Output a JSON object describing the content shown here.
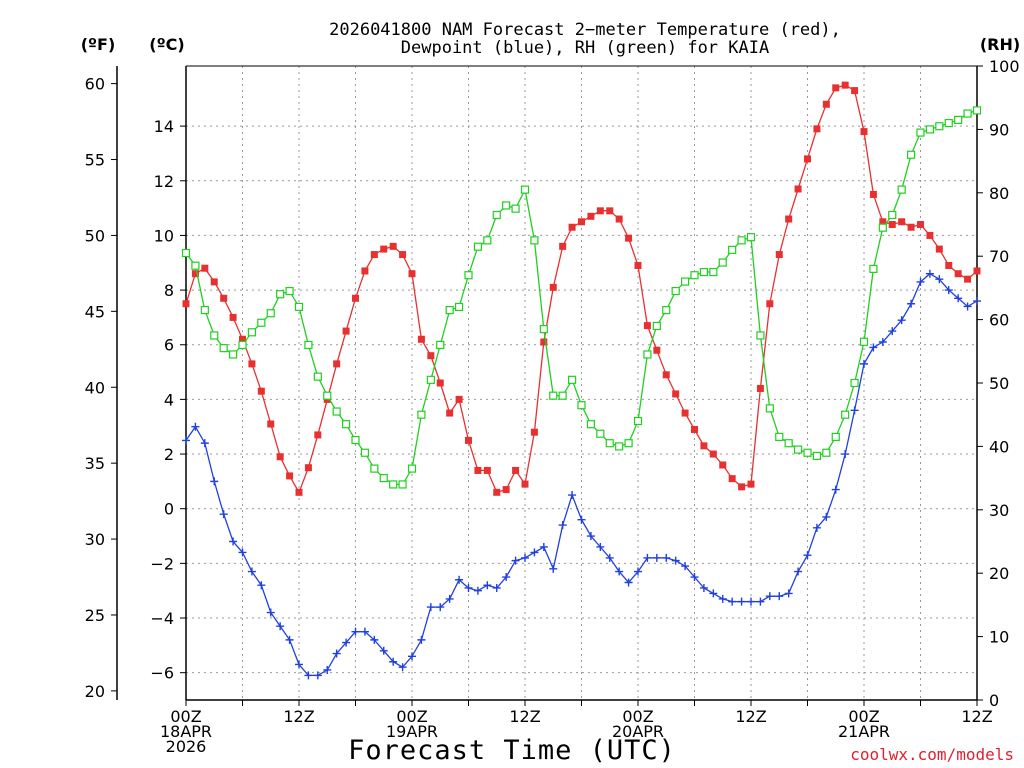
{
  "chart_data": {
    "type": "line",
    "title_line1": "2026041800 NAM Forecast 2−meter Temperature (red),",
    "title_line2": "Dewpoint (blue), RH (green) for KAIA",
    "xlabel": "Forecast Time (UTC)",
    "credit": "coolwx.com/models",
    "units": {
      "fahrenheit": "(ºF)",
      "celsius": "(ºC)",
      "rh": "(RH)"
    },
    "x_range_hours": [
      0,
      84
    ],
    "x_ticks": [
      {
        "hour": 0,
        "lines": [
          "00Z",
          "18APR",
          "2026"
        ]
      },
      {
        "hour": 12,
        "lines": [
          "12Z"
        ]
      },
      {
        "hour": 24,
        "lines": [
          "00Z",
          "19APR"
        ]
      },
      {
        "hour": 36,
        "lines": [
          "12Z"
        ]
      },
      {
        "hour": 48,
        "lines": [
          "00Z",
          "20APR"
        ]
      },
      {
        "hour": 60,
        "lines": [
          "12Z"
        ]
      },
      {
        "hour": 72,
        "lines": [
          "00Z",
          "21APR"
        ]
      },
      {
        "hour": 84,
        "lines": [
          "12Z"
        ]
      }
    ],
    "celsius_axis": {
      "range": [
        -7.0,
        16.2
      ],
      "ticks": [
        "−6",
        "−4",
        "−2",
        "0",
        "2",
        "4",
        "6",
        "8",
        "10",
        "12",
        "14"
      ],
      "tick_values": [
        -6,
        -4,
        -2,
        0,
        2,
        4,
        6,
        8,
        10,
        12,
        14
      ]
    },
    "fahrenheit_axis": {
      "ticks": [
        "20",
        "25",
        "30",
        "35",
        "40",
        "45",
        "50",
        "55",
        "60"
      ],
      "tick_values": [
        20,
        25,
        30,
        35,
        40,
        45,
        50,
        55,
        60
      ]
    },
    "rh_axis": {
      "range": [
        0,
        100
      ],
      "ticks": [
        "0",
        "10",
        "20",
        "30",
        "40",
        "50",
        "60",
        "70",
        "80",
        "90",
        "100"
      ],
      "tick_values": [
        0,
        10,
        20,
        30,
        40,
        50,
        60,
        70,
        80,
        90,
        100
      ]
    },
    "series": [
      {
        "name": "Temperature",
        "color": "#e83030",
        "marker": "filled-square",
        "axis": "celsius",
        "hours": [
          0,
          1,
          2,
          3,
          4,
          5,
          6,
          7,
          8,
          9,
          10,
          11,
          12,
          13,
          14,
          15,
          16,
          17,
          18,
          19,
          20,
          21,
          22,
          23,
          24,
          25,
          26,
          27,
          28,
          29,
          30,
          31,
          32,
          33,
          34,
          35,
          36,
          37,
          38,
          39,
          40,
          41,
          42,
          43,
          44,
          45,
          46,
          47,
          48,
          49,
          50,
          51,
          52,
          53,
          54,
          55,
          56,
          57,
          58,
          59,
          60,
          61,
          62,
          63,
          64,
          65,
          66,
          67,
          68,
          69,
          70,
          71,
          72,
          73,
          74,
          75,
          76,
          77,
          78,
          79,
          80,
          81,
          82,
          83,
          84
        ],
        "values": [
          7.5,
          8.6,
          8.8,
          8.3,
          7.7,
          7.0,
          6.2,
          5.3,
          4.3,
          3.1,
          1.9,
          1.2,
          0.6,
          1.5,
          2.7,
          4.0,
          5.3,
          6.5,
          7.7,
          8.7,
          9.3,
          9.5,
          9.6,
          9.3,
          8.6,
          6.2,
          5.6,
          4.6,
          3.5,
          4.0,
          2.5,
          1.4,
          1.4,
          0.6,
          0.7,
          1.4,
          0.9,
          2.8,
          6.1,
          8.1,
          9.6,
          10.3,
          10.5,
          10.7,
          10.9,
          10.9,
          10.6,
          9.9,
          8.9,
          6.7,
          5.8,
          4.9,
          4.2,
          3.5,
          2.9,
          2.3,
          2.0,
          1.6,
          1.1,
          0.8,
          0.9,
          4.4,
          7.5,
          9.3,
          10.6,
          11.7,
          12.8,
          13.9,
          14.8,
          15.4,
          15.5,
          15.3,
          13.8,
          11.5,
          10.5,
          10.4,
          10.5,
          10.3,
          10.4,
          10.0,
          9.5,
          8.9,
          8.6,
          8.4,
          8.7
        ]
      },
      {
        "name": "Dewpoint",
        "color": "#2040e0",
        "marker": "plus",
        "axis": "celsius",
        "hours": [
          0,
          1,
          2,
          3,
          4,
          5,
          6,
          7,
          8,
          9,
          10,
          11,
          12,
          13,
          14,
          15,
          16,
          17,
          18,
          19,
          20,
          21,
          22,
          23,
          24,
          25,
          26,
          27,
          28,
          29,
          30,
          31,
          32,
          33,
          34,
          35,
          36,
          37,
          38,
          39,
          40,
          41,
          42,
          43,
          44,
          45,
          46,
          47,
          48,
          49,
          50,
          51,
          52,
          53,
          54,
          55,
          56,
          57,
          58,
          59,
          60,
          61,
          62,
          63,
          64,
          65,
          66,
          67,
          68,
          69,
          70,
          71,
          72,
          73,
          74,
          75,
          76,
          77,
          78,
          79,
          80,
          81,
          82,
          83,
          84
        ],
        "values": [
          2.5,
          3.0,
          2.4,
          1.0,
          -0.2,
          -1.2,
          -1.6,
          -2.3,
          -2.8,
          -3.8,
          -4.3,
          -4.8,
          -5.7,
          -6.1,
          -6.1,
          -5.9,
          -5.3,
          -4.9,
          -4.5,
          -4.5,
          -4.8,
          -5.2,
          -5.6,
          -5.8,
          -5.4,
          -4.8,
          -3.6,
          -3.6,
          -3.3,
          -2.6,
          -2.9,
          -3.0,
          -2.8,
          -2.9,
          -2.5,
          -1.9,
          -1.8,
          -1.6,
          -1.4,
          -2.2,
          -0.6,
          0.5,
          -0.4,
          -1.0,
          -1.4,
          -1.8,
          -2.3,
          -2.7,
          -2.3,
          -1.8,
          -1.8,
          -1.8,
          -1.9,
          -2.1,
          -2.5,
          -2.9,
          -3.1,
          -3.3,
          -3.4,
          -3.4,
          -3.4,
          -3.4,
          -3.2,
          -3.2,
          -3.1,
          -2.3,
          -1.7,
          -0.7,
          -0.3,
          0.7,
          2.0,
          3.6,
          5.3,
          5.9,
          6.1,
          6.5,
          6.9,
          7.5,
          8.3,
          8.6,
          8.4,
          8.0,
          7.7,
          7.4,
          7.6
        ]
      },
      {
        "name": "Relative Humidity",
        "color": "#20d020",
        "marker": "open-square",
        "axis": "rh",
        "hours": [
          0,
          1,
          2,
          3,
          4,
          5,
          6,
          7,
          8,
          9,
          10,
          11,
          12,
          13,
          14,
          15,
          16,
          17,
          18,
          19,
          20,
          21,
          22,
          23,
          24,
          25,
          26,
          27,
          28,
          29,
          30,
          31,
          32,
          33,
          34,
          35,
          36,
          37,
          38,
          39,
          40,
          41,
          42,
          43,
          44,
          45,
          46,
          47,
          48,
          49,
          50,
          51,
          52,
          53,
          54,
          55,
          56,
          57,
          58,
          59,
          60,
          61,
          62,
          63,
          64,
          65,
          66,
          67,
          68,
          69,
          70,
          71,
          72,
          73,
          74,
          75,
          76,
          77,
          78,
          79,
          80,
          81,
          82,
          83,
          84
        ],
        "values": [
          70.5,
          68.5,
          61.5,
          57.5,
          55.5,
          54.5,
          56.0,
          58.0,
          59.5,
          61.0,
          64.0,
          64.5,
          62.0,
          56.0,
          51.0,
          48.0,
          45.5,
          43.5,
          41.0,
          39.0,
          36.5,
          35.0,
          34.0,
          34.0,
          36.5,
          45.0,
          50.5,
          56.0,
          61.5,
          62.0,
          67.0,
          71.5,
          72.5,
          76.5,
          78.0,
          77.5,
          80.5,
          72.5,
          58.5,
          48.0,
          48.0,
          50.5,
          46.5,
          43.5,
          42.0,
          40.5,
          40.0,
          40.5,
          44.0,
          54.5,
          59.0,
          61.5,
          64.5,
          66.0,
          67.0,
          67.5,
          67.5,
          69.0,
          71.0,
          72.5,
          73.0,
          57.5,
          46.0,
          41.5,
          40.5,
          39.5,
          39.0,
          38.5,
          39.0,
          41.5,
          45.0,
          50.0,
          56.5,
          68.0,
          74.5,
          76.5,
          80.5,
          86.0,
          89.5,
          90.0,
          90.5,
          91.0,
          91.5,
          92.5,
          93.0
        ]
      }
    ]
  }
}
